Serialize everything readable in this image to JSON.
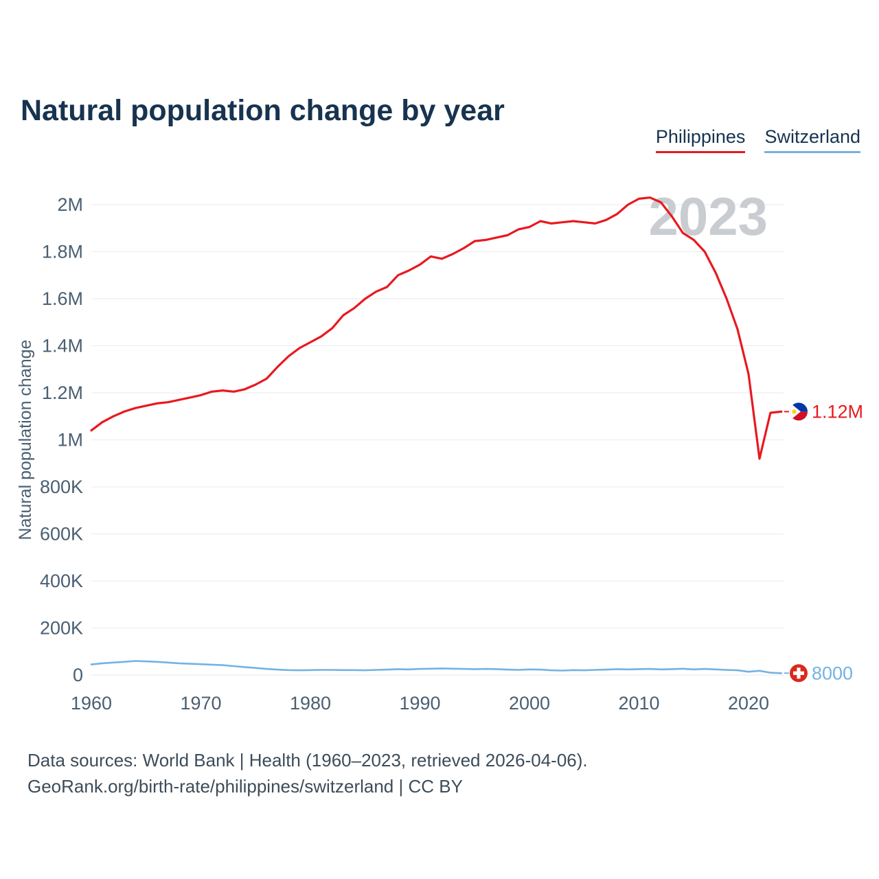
{
  "title": "Natural population change by year",
  "legend": [
    {
      "label": "Philippines",
      "color": "#e8191f"
    },
    {
      "label": "Switzerland",
      "color": "#74b2e2"
    }
  ],
  "footer": {
    "line1": "Data sources: World Bank | Health (1960–2023, retrieved 2026-04-06).",
    "line2": "GeoRank.org/birth-rate/philippines/switzerland | CC BY"
  },
  "chart_data": {
    "type": "line",
    "title": "Natural population change by year",
    "ylabel": "Natural population change",
    "xlabel": "",
    "watermark": "2023",
    "x_start": 1960,
    "x_end": 2023,
    "x_ticks": [
      1960,
      1970,
      1980,
      1990,
      2000,
      2010,
      2020
    ],
    "y_ticks": [
      {
        "label": "0",
        "value": 0
      },
      {
        "label": "200K",
        "value": 200000
      },
      {
        "label": "400K",
        "value": 400000
      },
      {
        "label": "600K",
        "value": 600000
      },
      {
        "label": "800K",
        "value": 800000
      },
      {
        "label": "1M",
        "value": 1000000
      },
      {
        "label": "1.2M",
        "value": 1200000
      },
      {
        "label": "1.4M",
        "value": 1400000
      },
      {
        "label": "1.6M",
        "value": 1600000
      },
      {
        "label": "1.8M",
        "value": 1800000
      },
      {
        "label": "2M",
        "value": 2000000
      }
    ],
    "ylim": [
      0,
      2000000
    ],
    "grid": true,
    "legend_position": "top-right",
    "series": [
      {
        "name": "Philippines",
        "color": "#e8191f",
        "flag": "philippines",
        "end_label": "1.12M",
        "values": [
          1040000,
          1075000,
          1100000,
          1120000,
          1135000,
          1145000,
          1155000,
          1160000,
          1170000,
          1180000,
          1190000,
          1205000,
          1210000,
          1205000,
          1215000,
          1235000,
          1260000,
          1310000,
          1355000,
          1390000,
          1415000,
          1440000,
          1475000,
          1530000,
          1560000,
          1600000,
          1630000,
          1650000,
          1700000,
          1720000,
          1745000,
          1780000,
          1770000,
          1790000,
          1815000,
          1845000,
          1850000,
          1860000,
          1870000,
          1895000,
          1905000,
          1930000,
          1920000,
          1925000,
          1930000,
          1925000,
          1920000,
          1935000,
          1960000,
          2000000,
          2025000,
          2030000,
          2010000,
          1950000,
          1880000,
          1850000,
          1800000,
          1710000,
          1600000,
          1470000,
          1280000,
          920000,
          1115000,
          1120000
        ]
      },
      {
        "name": "Switzerland",
        "color": "#74b2e2",
        "flag": "switzerland",
        "end_label": "8000",
        "values": [
          45000,
          50000,
          53000,
          56000,
          60000,
          58000,
          56000,
          53000,
          50000,
          48000,
          46000,
          44000,
          42000,
          38000,
          34000,
          30000,
          26000,
          23000,
          21000,
          20000,
          21000,
          22000,
          22000,
          21000,
          21000,
          20000,
          22000,
          23000,
          25000,
          24000,
          26000,
          27000,
          28000,
          27000,
          26000,
          25000,
          26000,
          25000,
          23000,
          22000,
          24000,
          23000,
          20000,
          19000,
          21000,
          20000,
          22000,
          23000,
          25000,
          24000,
          25000,
          26000,
          24000,
          25000,
          27000,
          24000,
          26000,
          24000,
          22000,
          20000,
          14000,
          18000,
          10000,
          8000
        ]
      }
    ]
  }
}
